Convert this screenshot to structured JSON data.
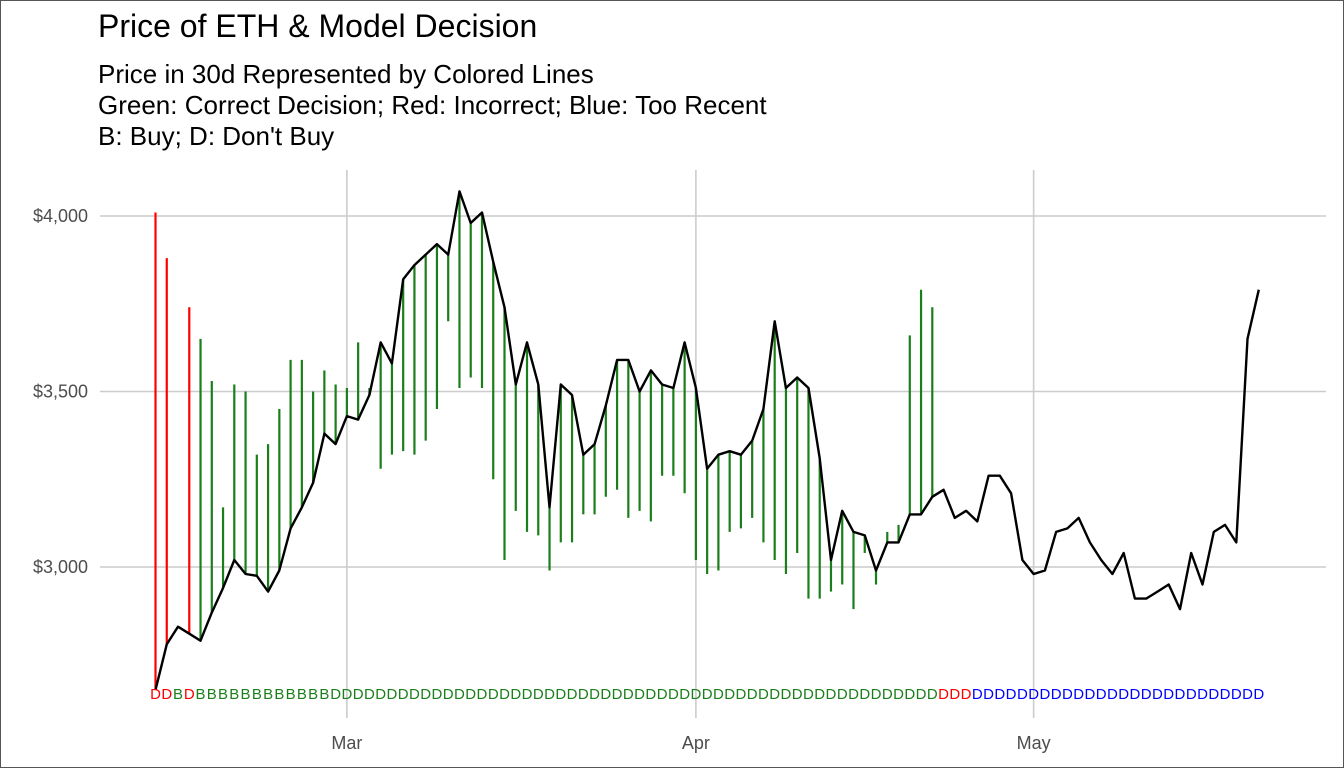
{
  "chart_data": {
    "type": "line",
    "title": "Price of ETH & Model Decision",
    "subtitle": [
      "Price in 30d Represented by Colored Lines",
      "Green: Correct Decision; Red: Incorrect; Blue: Too Recent",
      "B: Buy; D: Don't Buy"
    ],
    "xlabel": "",
    "ylabel": "",
    "x_start": "2022-02-12",
    "x_ticks": [
      {
        "date": "2022-03-01",
        "label": "Mar"
      },
      {
        "date": "2022-04-01",
        "label": "Apr"
      },
      {
        "date": "2022-05-01",
        "label": "May"
      }
    ],
    "y_ticks": [
      {
        "value": 3000,
        "label": "$3,000"
      },
      {
        "value": 3500,
        "label": "$3,500"
      },
      {
        "value": 4000,
        "label": "$4,000"
      }
    ],
    "ylim": [
      2600,
      4120
    ],
    "grid": true,
    "series": [
      {
        "name": "",
        "color": "#000000",
        "values": [
          2650,
          2780,
          2830,
          2810,
          2790,
          2870,
          2940,
          3020,
          2980,
          2975,
          2930,
          2990,
          3110,
          3170,
          3240,
          3380,
          3350,
          3430,
          3420,
          3490,
          3640,
          3580,
          3820,
          3860,
          3890,
          3920,
          3890,
          4070,
          3980,
          4010,
          3870,
          3740,
          3520,
          3640,
          3520,
          3170,
          3520,
          3490,
          3320,
          3350,
          3460,
          3590,
          3590,
          3500,
          3560,
          3520,
          3510,
          3640,
          3510,
          3280,
          3320,
          3330,
          3320,
          3360,
          3450,
          3700,
          3510,
          3540,
          3510,
          3310,
          3020,
          3160,
          3100,
          3090,
          2990,
          3070,
          3070,
          3150,
          3150,
          3200,
          3220,
          3140,
          3160,
          3130,
          3260,
          3260,
          3210,
          3020,
          2980,
          2990,
          3100,
          3110,
          3140,
          3070,
          3020,
          2980,
          3040,
          2910,
          2910,
          2930,
          2950,
          2880,
          3040,
          2950,
          3100,
          3120,
          3070,
          3650,
          3790
        ]
      }
    ],
    "future_price_30d": [
      4010,
      3880,
      null,
      3740,
      3650,
      3530,
      3170,
      3520,
      3500,
      3320,
      3350,
      3450,
      3590,
      3590,
      3500,
      3560,
      3520,
      3510,
      3640,
      3510,
      3280,
      3320,
      3330,
      3320,
      3360,
      3450,
      3700,
      3510,
      3540,
      3510,
      3250,
      3020,
      3160,
      3100,
      3090,
      2990,
      3070,
      3070,
      3150,
      3150,
      3200,
      3220,
      3140,
      3160,
      3130,
      3260,
      3260,
      3210,
      3020,
      2980,
      2990,
      3100,
      3110,
      3140,
      3070,
      3020,
      2980,
      3040,
      2910,
      2910,
      2930,
      2950,
      2880,
      3040,
      2950,
      3100,
      3120,
      3660,
      3790,
      3740,
      null,
      null,
      null,
      null,
      null,
      null,
      null,
      null,
      null,
      null,
      null,
      null,
      null,
      null,
      null,
      null,
      null,
      null,
      null,
      null,
      null,
      null,
      null,
      null,
      null,
      null,
      null,
      null,
      null
    ],
    "decisions": "DDBDBBBBBBBBBBBBDDDDDDDDDDDDDDDDDDDDDDDDDDDDDDDDDDDDDDDDDDDDDDDDDDDDDDDDDDDDDDDDDDDDDDDDDDDDDDDDDDDD",
    "decision_status": "RRGRGGGGGGGGGGGGGGGGGGGGGGGGGGGGGGGGGGGGGGGGGGGGGGGGGGGGGGGGGGGGGGGGGGRRRBBBBBBBBBBBBBBBBBBBBBBBBBBBBB",
    "status_colors": {
      "G": "#1a7f1a",
      "R": "#ff0000",
      "B": "#0000ff"
    }
  }
}
